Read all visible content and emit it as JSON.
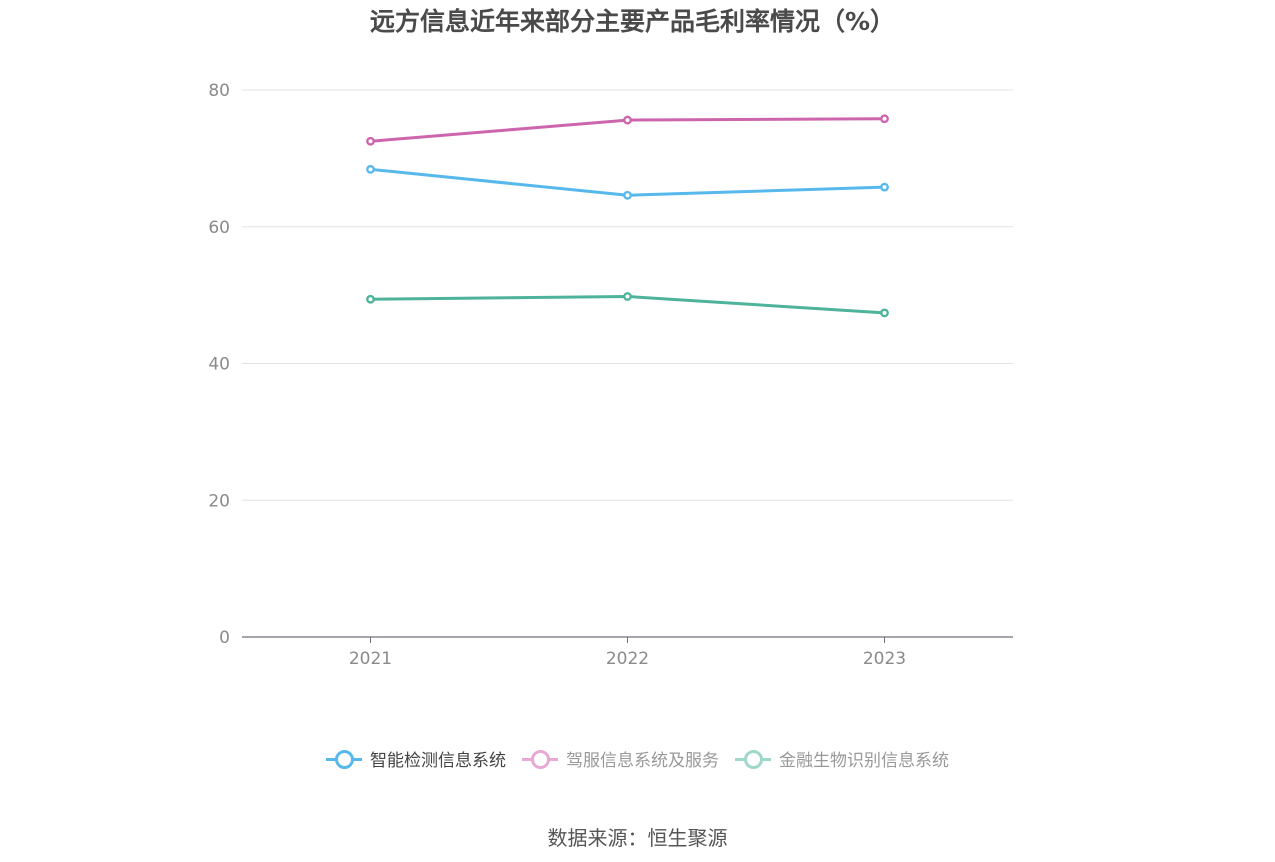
{
  "title": "远方信息近年来部分主要产品毛利率情况（%）",
  "source": "数据来源：恒生聚源",
  "legend": [
    {
      "name": "智能检测信息系统",
      "color": "#57b8ec",
      "active": true,
      "text_color": "#444444"
    },
    {
      "name": "驾服信息系统及服务",
      "color": "#e7a8d6",
      "active": false,
      "text_color": "#999999"
    },
    {
      "name": "金融生物识别信息系统",
      "color": "#9ed8c9",
      "active": false,
      "text_color": "#999999"
    }
  ],
  "chart_data": {
    "type": "line",
    "title": "远方信息近年来部分主要产品毛利率情况（%）",
    "categories": [
      "2021",
      "2022",
      "2023"
    ],
    "ylim": [
      0,
      80
    ],
    "yticks": [
      "0",
      "20",
      "40",
      "60",
      "80"
    ],
    "grid": true,
    "legend_position": "bottom",
    "series": [
      {
        "name": "智能检测信息系统",
        "color": "#57b8ec",
        "values": [
          68.4,
          64.6,
          65.8
        ]
      },
      {
        "name": "驾服信息系统及服务",
        "color": "#cd65ad",
        "values": [
          72.5,
          75.6,
          75.8
        ]
      },
      {
        "name": "金融生物识别信息系统",
        "color": "#4db39a",
        "values": [
          49.4,
          49.8,
          47.4
        ]
      }
    ]
  }
}
